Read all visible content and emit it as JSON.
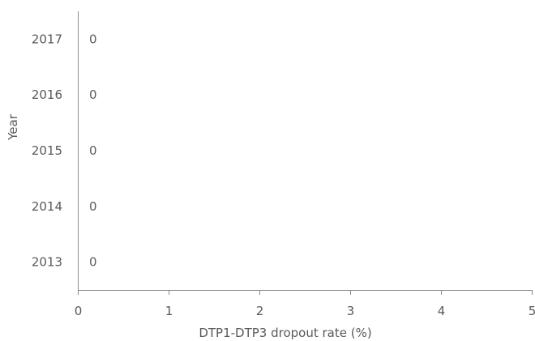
{
  "chart_data": {
    "type": "bar",
    "orientation": "horizontal",
    "categories": [
      "2013",
      "2014",
      "2015",
      "2016",
      "2017"
    ],
    "values": [
      0,
      0,
      0,
      0,
      0
    ],
    "data_labels": [
      "0",
      "0",
      "0",
      "0",
      "0"
    ],
    "xlabel": "DTP1-DTP3 dropout rate (%)",
    "ylabel": "Year",
    "xlim": [
      0,
      5
    ],
    "xticks": [
      "0",
      "1",
      "2",
      "3",
      "4",
      "5"
    ],
    "grid": false,
    "colors": {
      "axis": "#8c8c8c",
      "text": "#595959",
      "bar": "#1f77b4"
    }
  }
}
